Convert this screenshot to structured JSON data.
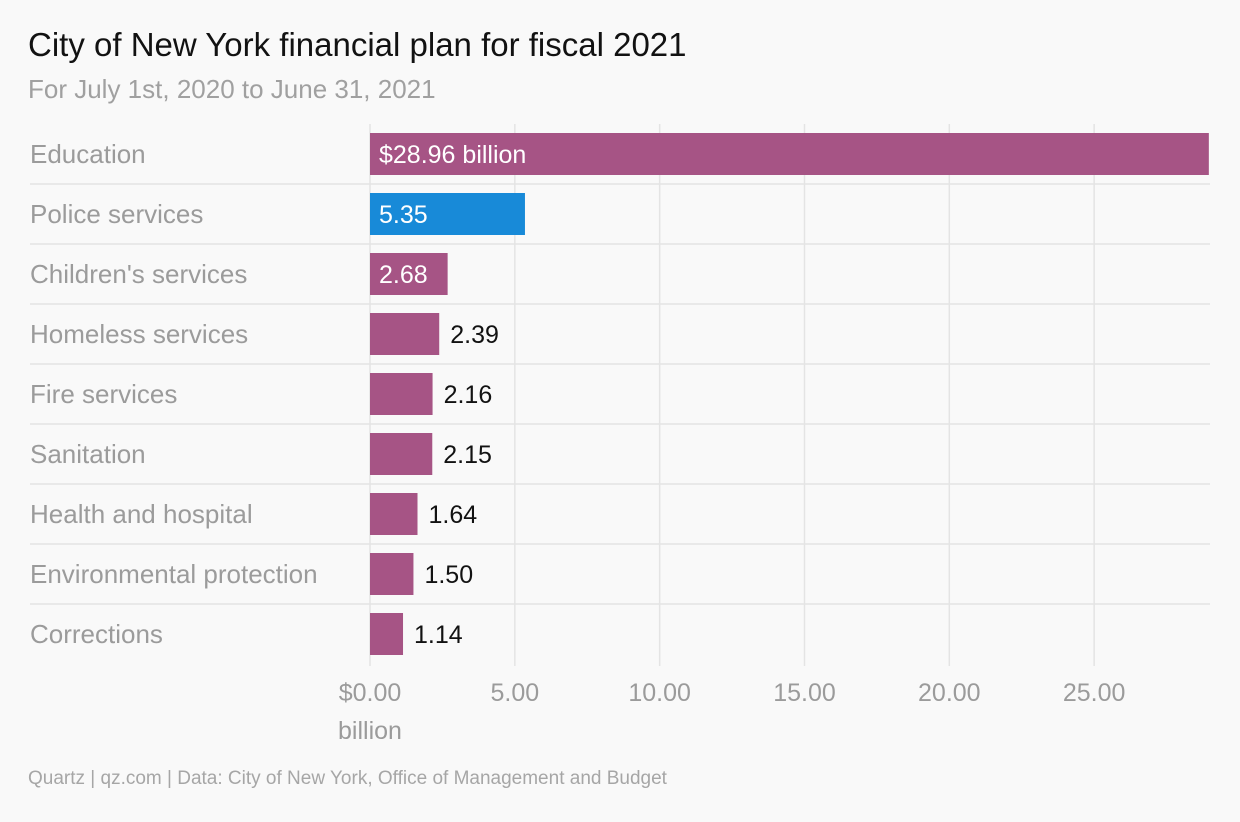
{
  "header": {
    "title": "City of New York financial plan for fiscal 2021",
    "subtitle": "For July 1st, 2020 to June 31, 2021"
  },
  "chart_data": {
    "type": "bar",
    "orientation": "horizontal",
    "categories": [
      "Education",
      "Police services",
      "Children's services",
      "Homeless services",
      "Fire services",
      "Sanitation",
      "Health and hospital",
      "Environmental protection",
      "Corrections"
    ],
    "values": [
      28.96,
      5.35,
      2.68,
      2.39,
      2.16,
      2.15,
      1.64,
      1.5,
      1.14
    ],
    "value_labels": [
      "$28.96 billion",
      "5.35",
      "2.68",
      "2.39",
      "2.16",
      "2.15",
      "1.64",
      "1.50",
      "1.14"
    ],
    "highlight_index": 1,
    "colors": {
      "default": "#a65485",
      "highlight": "#188ad8"
    },
    "xlim": [
      0,
      29
    ],
    "x_ticks": [
      0,
      5,
      10,
      15,
      20,
      25
    ],
    "x_tick_labels": [
      [
        "$0.00",
        "billion"
      ],
      [
        "5.00"
      ],
      [
        "10.00"
      ],
      [
        "15.00"
      ],
      [
        "20.00"
      ],
      [
        "25.00"
      ]
    ],
    "grid": true,
    "legend": "none"
  },
  "footer": {
    "source": "Quartz | qz.com | Data: City of New York, Office of Management and Budget"
  }
}
